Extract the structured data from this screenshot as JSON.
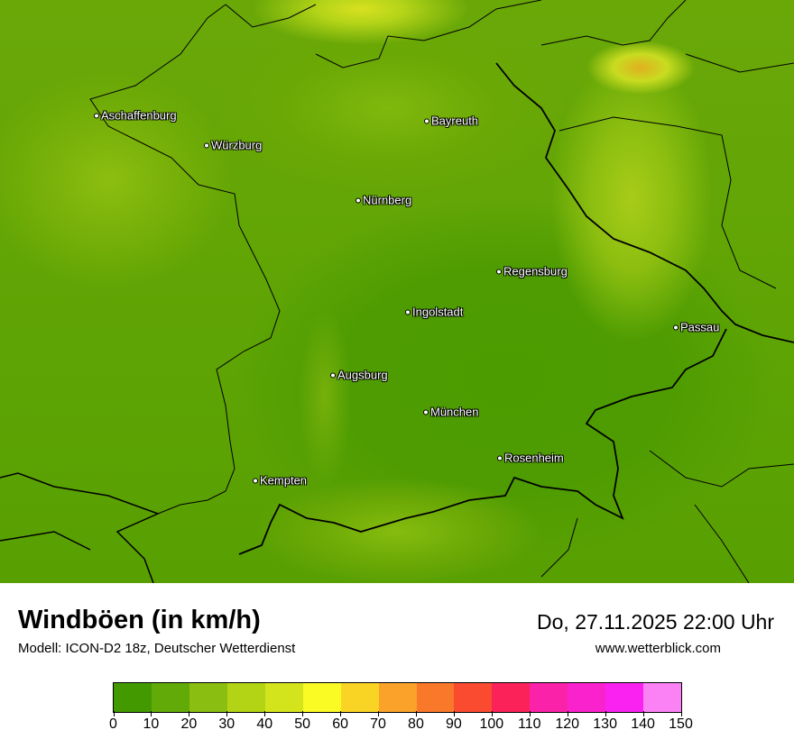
{
  "map": {
    "cities": [
      {
        "name": "Aschaffenburg"
      },
      {
        "name": "Würzburg"
      },
      {
        "name": "Bayreuth"
      },
      {
        "name": "Nürnberg"
      },
      {
        "name": "Regensburg"
      },
      {
        "name": "Ingolstadt"
      },
      {
        "name": "Passau"
      },
      {
        "name": "Augsburg"
      },
      {
        "name": "München"
      },
      {
        "name": "Rosenheim"
      },
      {
        "name": "Kempten"
      }
    ]
  },
  "footer": {
    "title": "Windböen (in km/h)",
    "model": "Modell: ICON-D2 18z, Deutscher Wetterdienst",
    "datetime": "Do, 27.11.2025 22:00 Uhr",
    "website": "www.wetterblick.com"
  },
  "legend": {
    "unit": "km/h",
    "ticks": [
      "0",
      "10",
      "20",
      "30",
      "40",
      "50",
      "60",
      "70",
      "80",
      "90",
      "100",
      "110",
      "120",
      "130",
      "140",
      "150"
    ],
    "colors": [
      "#429a00",
      "#62aa08",
      "#8abe10",
      "#b2d414",
      "#d4e41c",
      "#fafa24",
      "#fad424",
      "#faa22a",
      "#fa782a",
      "#fa4a30",
      "#fa2258",
      "#fa22a8",
      "#fa22cc",
      "#fa22f0",
      "#fa82f4"
    ]
  }
}
